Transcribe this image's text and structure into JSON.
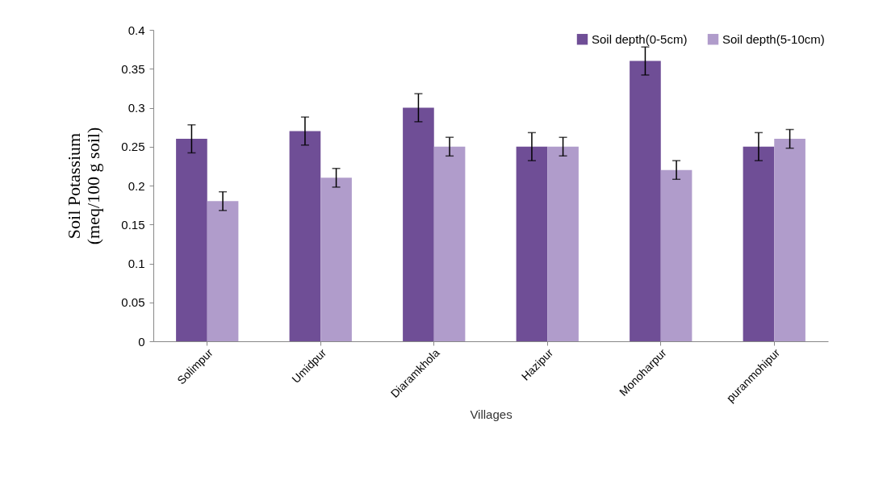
{
  "chart_data": {
    "type": "bar",
    "xlabel": "Villages",
    "ylabel": "Soil Potassium\n(meq/100 g soil)",
    "categories": [
      "Solimpur",
      "Umidpur",
      "Diaramkhola",
      "Hazipur",
      "Monoharpur",
      "puranmohipur"
    ],
    "series": [
      {
        "name": "Soil depth(0-5cm)",
        "color": "#6f4e96",
        "values": [
          0.26,
          0.27,
          0.3,
          0.25,
          0.36,
          0.25
        ],
        "errors": [
          0.018,
          0.018,
          0.018,
          0.018,
          0.018,
          0.018
        ]
      },
      {
        "name": "Soil depth(5-10cm)",
        "color": "#b09ccb",
        "values": [
          0.18,
          0.21,
          0.25,
          0.25,
          0.22,
          0.26
        ],
        "errors": [
          0.012,
          0.012,
          0.012,
          0.012,
          0.012,
          0.012
        ]
      }
    ],
    "ylim": [
      0,
      0.4
    ],
    "yticks": [
      0,
      0.05,
      0.1,
      0.15,
      0.2,
      0.25,
      0.3,
      0.35,
      0.4
    ],
    "grid": false,
    "legend": "top right"
  }
}
